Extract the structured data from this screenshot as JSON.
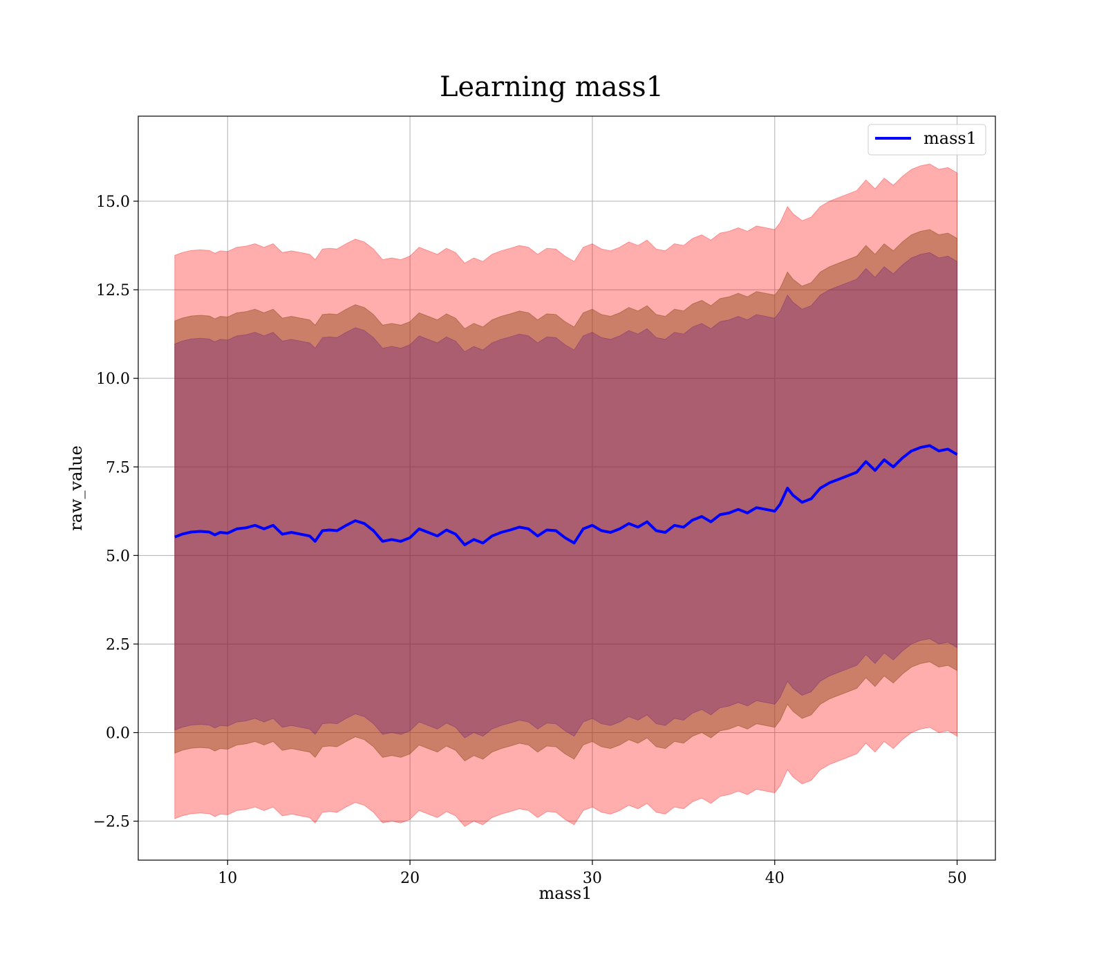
{
  "chart_data": {
    "type": "line",
    "title": "Learning mass1",
    "xlabel": "mass1",
    "ylabel": "raw_value",
    "xlim": [
      5.1,
      52.1
    ],
    "ylim": [
      -3.6,
      17.4
    ],
    "x_ticks": [
      10,
      20,
      30,
      40,
      50
    ],
    "x_tick_labels": [
      "10",
      "20",
      "30",
      "40",
      "50"
    ],
    "y_ticks": [
      -2.5,
      0.0,
      2.5,
      5.0,
      7.5,
      10.0,
      12.5,
      15.0
    ],
    "y_tick_labels": [
      "−2.5",
      "0.0",
      "2.5",
      "5.0",
      "7.5",
      "10.0",
      "12.5",
      "15.0"
    ],
    "grid": true,
    "legend": {
      "position": "top-right",
      "entries": [
        {
          "label": "mass1",
          "color": "#0000ff"
        }
      ]
    },
    "x": [
      7.1,
      7.5,
      8.0,
      8.5,
      9.0,
      9.3,
      9.6,
      10.0,
      10.5,
      11.0,
      11.5,
      12.0,
      12.5,
      13.0,
      13.5,
      14.0,
      14.5,
      14.8,
      15.2,
      15.6,
      16.0,
      16.5,
      17.0,
      17.5,
      18.0,
      18.5,
      19.0,
      19.5,
      20.0,
      20.5,
      21.0,
      21.5,
      22.0,
      22.5,
      23.0,
      23.5,
      24.0,
      24.5,
      25.0,
      25.5,
      26.0,
      26.5,
      27.0,
      27.5,
      28.0,
      28.5,
      29.0,
      29.5,
      30.0,
      30.5,
      31.0,
      31.5,
      32.0,
      32.5,
      33.0,
      33.5,
      34.0,
      34.5,
      35.0,
      35.5,
      36.0,
      36.5,
      37.0,
      37.5,
      38.0,
      38.5,
      39.0,
      39.5,
      40.0,
      40.3,
      40.7,
      41.0,
      41.5,
      42.0,
      42.5,
      43.0,
      43.5,
      44.0,
      44.5,
      45.0,
      45.5,
      46.0,
      46.5,
      47.0,
      47.5,
      48.0,
      48.5,
      49.0,
      49.5,
      50.0
    ],
    "series": [
      {
        "name": "mass1",
        "color": "#0000ff",
        "values": [
          5.52,
          5.6,
          5.66,
          5.68,
          5.66,
          5.58,
          5.65,
          5.63,
          5.75,
          5.78,
          5.85,
          5.75,
          5.85,
          5.6,
          5.65,
          5.6,
          5.55,
          5.4,
          5.7,
          5.72,
          5.7,
          5.85,
          5.98,
          5.9,
          5.7,
          5.4,
          5.45,
          5.4,
          5.5,
          5.75,
          5.65,
          5.55,
          5.72,
          5.6,
          5.3,
          5.45,
          5.35,
          5.55,
          5.65,
          5.72,
          5.8,
          5.75,
          5.55,
          5.72,
          5.7,
          5.5,
          5.35,
          5.75,
          5.85,
          5.7,
          5.65,
          5.75,
          5.9,
          5.8,
          5.95,
          5.7,
          5.65,
          5.85,
          5.8,
          6.0,
          6.1,
          5.95,
          6.15,
          6.2,
          6.3,
          6.2,
          6.35,
          6.3,
          6.25,
          6.45,
          6.9,
          6.7,
          6.5,
          6.6,
          6.9,
          7.05,
          7.15,
          7.25,
          7.35,
          7.65,
          7.4,
          7.7,
          7.5,
          7.75,
          7.95,
          8.05,
          8.1,
          7.95,
          8.0,
          7.85
        ]
      }
    ],
    "bands": [
      {
        "name": "outer",
        "color": "#ff0000",
        "opacity": 0.32,
        "upper_offset": [
          7.95,
          7.95,
          7.95,
          7.95,
          7.95,
          7.95,
          7.95,
          7.95,
          7.95,
          7.95,
          7.95,
          7.95,
          7.95,
          7.95,
          7.95,
          7.95,
          7.95,
          7.95,
          7.95,
          7.95,
          7.95,
          7.95,
          7.95,
          7.95,
          7.95,
          7.95,
          7.95,
          7.95,
          7.95,
          7.95,
          7.95,
          7.95,
          7.95,
          7.95,
          7.95,
          7.95,
          7.95,
          7.95,
          7.95,
          7.95,
          7.95,
          7.95,
          7.95,
          7.95,
          7.95,
          7.95,
          7.95,
          7.95,
          7.95,
          7.95,
          7.95,
          7.95,
          7.95,
          7.95,
          7.95,
          7.95,
          7.95,
          7.95,
          7.95,
          7.95,
          7.95,
          7.95,
          7.95,
          7.95,
          7.95,
          7.95,
          7.95,
          7.95,
          7.95,
          7.95,
          7.95,
          7.95,
          7.95,
          7.95,
          7.95,
          7.95,
          7.95,
          7.95,
          7.95,
          7.95,
          7.95,
          7.95,
          7.95,
          7.95,
          7.95,
          7.95,
          7.95,
          7.95,
          7.95,
          7.95
        ],
        "lower_offset": 7.95
      },
      {
        "name": "middle",
        "color": "#8b4513",
        "opacity": 0.45,
        "upper_offset": 6.1,
        "lower_offset": 6.1
      },
      {
        "name": "inner",
        "color": "#4b0082",
        "opacity": 0.25,
        "upper_offset": 5.45,
        "lower_offset": 5.45
      }
    ]
  }
}
